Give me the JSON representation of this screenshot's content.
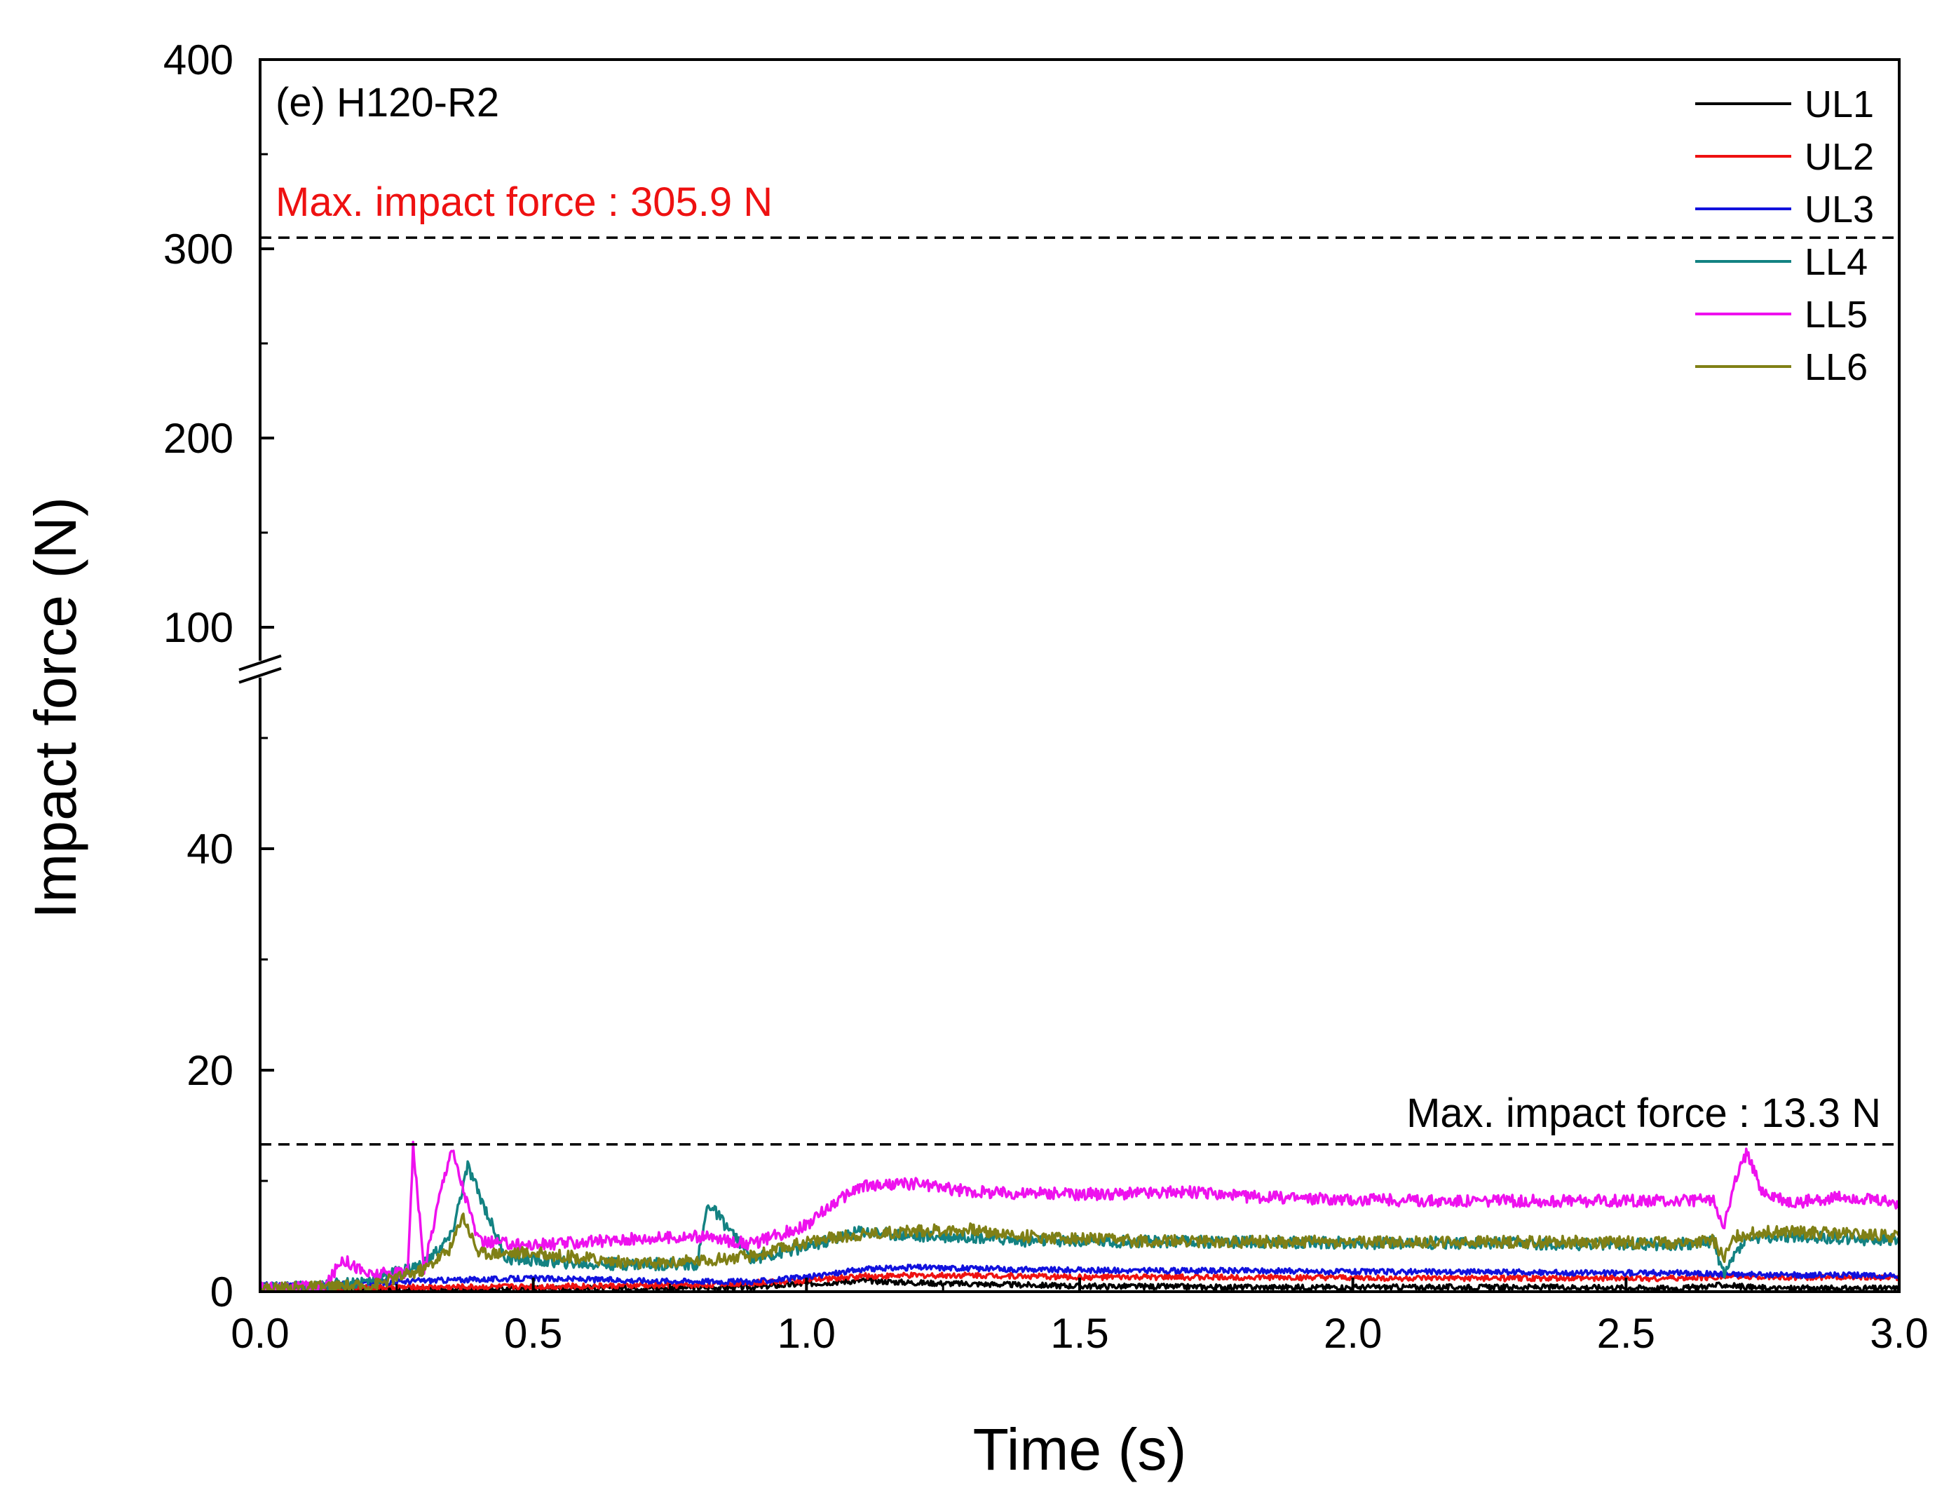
{
  "chart_data": {
    "type": "line",
    "panel_label": "(e) H120-R2",
    "xlabel": "Time (s)",
    "ylabel": "Impact force (N)",
    "xlim": [
      0,
      3.0
    ],
    "x_ticks": [
      "0.0",
      "0.5",
      "1.0",
      "1.5",
      "2.0",
      "2.5",
      "3.0"
    ],
    "x_tick_values": [
      0,
      0.5,
      1.0,
      1.5,
      2.0,
      2.5,
      3.0
    ],
    "y_axis_break": true,
    "y_lower_range": [
      0,
      55
    ],
    "y_upper_range": [
      85,
      400
    ],
    "y_ticks": [
      "0",
      "20",
      "40",
      "100",
      "200",
      "300",
      "400"
    ],
    "y_tick_values": [
      0,
      20,
      40,
      100,
      200,
      300,
      400
    ],
    "annotations": [
      {
        "text": "Max. impact force : 305.9 N",
        "value": 305.9,
        "color": "#ee1111",
        "style": "dashed"
      },
      {
        "text": "Max. impact force : 13.3 N",
        "value": 13.3,
        "color": "#000000",
        "style": "dashed"
      }
    ],
    "legend_position": "top-right",
    "series": [
      {
        "name": "UL1",
        "color": "#000000",
        "x": [
          0,
          0.3,
          0.6,
          0.9,
          1.0,
          1.1,
          1.2,
          1.5,
          1.8,
          2.1,
          2.4,
          2.6,
          2.68,
          2.75,
          3.0
        ],
        "values": [
          0.2,
          0.2,
          0.3,
          0.4,
          0.7,
          1.0,
          0.8,
          0.5,
          0.4,
          0.4,
          0.4,
          0.3,
          0.6,
          0.3,
          0.3
        ]
      },
      {
        "name": "UL2",
        "color": "#ee1111",
        "x": [
          0,
          0.3,
          0.6,
          0.8,
          1.0,
          1.1,
          1.3,
          1.5,
          1.8,
          2.1,
          2.4,
          2.6,
          2.7,
          2.8,
          3.0
        ],
        "values": [
          0.3,
          0.4,
          0.5,
          0.6,
          1.0,
          1.4,
          1.5,
          1.3,
          1.3,
          1.2,
          1.2,
          1.2,
          1.4,
          1.3,
          1.3
        ]
      },
      {
        "name": "UL3",
        "color": "#1111dd",
        "x": [
          0,
          0.08,
          0.2,
          0.3,
          0.5,
          0.7,
          0.9,
          1.0,
          1.1,
          1.2,
          1.4,
          1.6,
          1.8,
          2.0,
          2.2,
          2.4,
          2.6,
          2.68,
          2.75,
          2.9,
          3.0
        ],
        "values": [
          0.6,
          0.5,
          0.8,
          1.0,
          1.2,
          1.0,
          0.9,
          1.3,
          2.0,
          2.2,
          2.0,
          1.9,
          1.9,
          1.8,
          1.8,
          1.7,
          1.7,
          1.6,
          1.5,
          1.5,
          1.4
        ]
      },
      {
        "name": "LL4",
        "color": "#138282",
        "x": [
          0,
          0.1,
          0.2,
          0.3,
          0.35,
          0.38,
          0.45,
          0.6,
          0.8,
          0.82,
          0.9,
          1.0,
          1.1,
          1.2,
          1.3,
          1.4,
          1.6,
          1.8,
          2.0,
          2.2,
          2.4,
          2.6,
          2.66,
          2.68,
          2.7,
          2.72,
          2.8,
          2.9,
          3.0
        ],
        "values": [
          0.3,
          0.4,
          1.0,
          2.5,
          5.0,
          11.3,
          3.0,
          2.5,
          2.5,
          8.0,
          3.0,
          4.0,
          5.5,
          5.0,
          5.0,
          4.6,
          4.5,
          4.5,
          4.4,
          4.4,
          4.3,
          4.3,
          4.5,
          1.5,
          3.5,
          4.8,
          5.0,
          4.8,
          4.6
        ]
      },
      {
        "name": "LL5",
        "color": "#ee11ee",
        "x": [
          0,
          0.12,
          0.15,
          0.2,
          0.27,
          0.28,
          0.3,
          0.33,
          0.35,
          0.4,
          0.5,
          0.6,
          0.7,
          0.8,
          0.9,
          1.0,
          1.05,
          1.1,
          1.2,
          1.3,
          1.5,
          1.7,
          1.8,
          2.0,
          2.2,
          2.4,
          2.6,
          2.66,
          2.68,
          2.7,
          2.72,
          2.75,
          2.8,
          2.9,
          3.0
        ],
        "values": [
          0.3,
          0.4,
          3.0,
          1.5,
          1.8,
          13.3,
          2.0,
          9.0,
          13.0,
          4.5,
          4.2,
          4.5,
          4.8,
          5.0,
          4.3,
          6.0,
          8.0,
          9.5,
          9.8,
          9.0,
          8.8,
          9.0,
          8.6,
          8.3,
          8.2,
          8.2,
          8.2,
          8.3,
          6.0,
          10.0,
          12.5,
          9.0,
          8.0,
          8.6,
          8.0
        ]
      },
      {
        "name": "LL6",
        "color": "#808016",
        "x": [
          0,
          0.2,
          0.3,
          0.35,
          0.37,
          0.4,
          0.5,
          0.6,
          0.7,
          0.8,
          0.9,
          1.0,
          1.1,
          1.2,
          1.3,
          1.4,
          1.6,
          1.8,
          2.0,
          2.2,
          2.4,
          2.6,
          2.66,
          2.68,
          2.7,
          2.75,
          2.8,
          2.9,
          3.0
        ],
        "values": [
          0.3,
          0.5,
          2.0,
          4.0,
          7.0,
          3.5,
          3.5,
          3.0,
          2.5,
          2.8,
          3.2,
          4.5,
          5.2,
          5.5,
          5.6,
          5.0,
          4.6,
          4.5,
          4.5,
          4.5,
          4.5,
          4.4,
          4.6,
          3.0,
          5.0,
          5.4,
          5.4,
          5.2,
          5.0
        ]
      }
    ]
  }
}
